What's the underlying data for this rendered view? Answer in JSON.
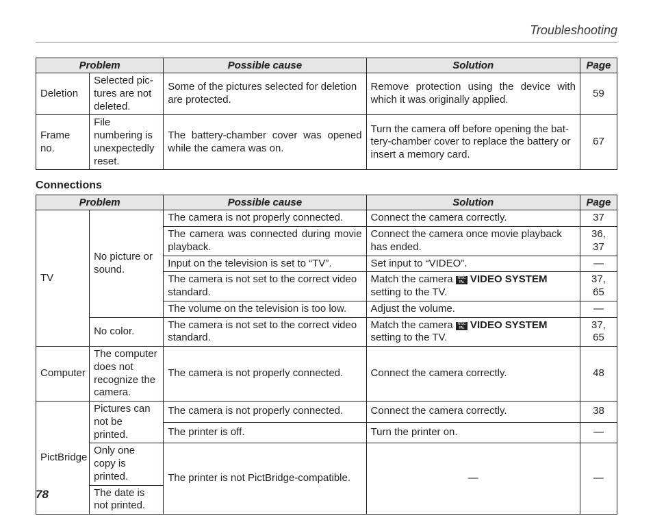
{
  "header": {
    "title": "Troubleshooting"
  },
  "page_number": "78",
  "cols": {
    "problem": "Problem",
    "cause": "Possible cause",
    "solution": "Solution",
    "page": "Page"
  },
  "sections": {
    "top": {
      "rows": {
        "r0": {
          "cat": "Deletion",
          "prob": "Selected pic­tures are not deleted.",
          "cause": "Some of the pictures selected for deletion are protected.",
          "sol": "Remove protection using the device with which it was originally applied.",
          "pg": "59"
        },
        "r1": {
          "cat": "Frame no.",
          "prob": "File numbering is unexpect­edly reset.",
          "cause": "The battery-chamber cover was opened while the camera was on.",
          "sol": "Turn the camera off before opening the bat­tery-chamber cover to replace the battery or insert a memory card.",
          "pg": "67"
        }
      }
    },
    "conn": {
      "title": "Connections",
      "tv": {
        "cat": "TV",
        "prob_a": "No picture or sound.",
        "prob_b": "No color.",
        "r0": {
          "cause": "The camera is not properly connected.",
          "sol": "Connect the camera correctly.",
          "pg": "37"
        },
        "r1": {
          "cause": "The camera was connected during movie playback.",
          "sol": "Connect the camera once movie playback has ended.",
          "pg": "36, 37"
        },
        "r2": {
          "cause": "Input on the television is set to “TV”.",
          "sol": "Set input to “VIDEO”.",
          "pg": "—"
        },
        "r3": {
          "cause": "The camera is not set to the correct video standard.",
          "sol_pre": "Match the camera ",
          "sol_bold": " VIDEO SYSTEM",
          "sol_post": " setting to the TV.",
          "pg": "37, 65"
        },
        "r4": {
          "cause": "The volume on the television is too low.",
          "sol": "Adjust the volume.",
          "pg": "—"
        },
        "r5": {
          "cause": "The camera is not set to the correct video standard.",
          "sol_pre": "Match the camera ",
          "sol_bold": " VIDEO SYSTEM",
          "sol_post": " setting to the TV.",
          "pg": "37, 65"
        }
      },
      "comp": {
        "cat": "Computer",
        "prob": "The com­puter does not recognize the camera.",
        "cause": "The camera is not properly connected.",
        "sol": "Connect the camera correctly.",
        "pg": "48"
      },
      "pb": {
        "cat": "PictBridge",
        "prob_a": "Pictures can not be printed.",
        "prob_b": "Only one copy is printed.",
        "prob_c": "The date is not printed.",
        "r0": {
          "cause": "The camera is not properly connected.",
          "sol": "Connect the camera correctly.",
          "pg": "38"
        },
        "r1": {
          "cause": "The printer is off.",
          "sol": "Turn the printer on.",
          "pg": "—"
        },
        "r2": {
          "cause": "The printer is not PictBridge-compatible.",
          "sol": "—",
          "pg": "—"
        }
      }
    }
  }
}
